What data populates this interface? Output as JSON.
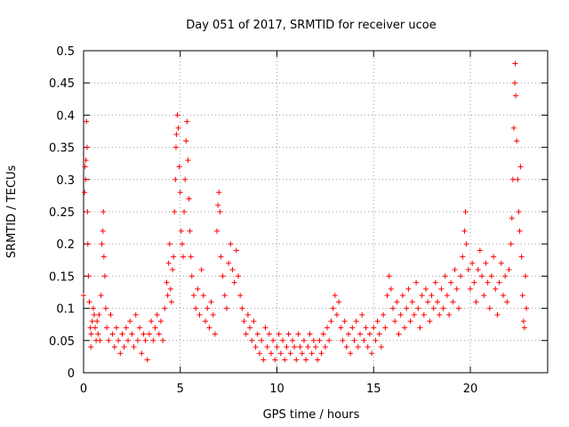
{
  "chart_data": {
    "type": "scatter",
    "title": "Day 051 of 2017, SRMTID for receiver ucoe",
    "xlabel": "GPS time / hours",
    "ylabel": "SRMTID / TECUs",
    "xlim": [
      0,
      24
    ],
    "ylim": [
      0,
      0.5
    ],
    "xticks": [
      0,
      5,
      10,
      15,
      20
    ],
    "xtick_labels": [
      "0",
      "5",
      "10",
      "15",
      "20"
    ],
    "yticks": [
      0,
      0.05,
      0.1,
      0.15,
      0.2,
      0.25,
      0.3,
      0.35,
      0.4,
      0.45,
      0.5
    ],
    "ytick_labels": [
      "0",
      "0.05",
      "0.1",
      "0.15",
      "0.2",
      "0.25",
      "0.3",
      "0.35",
      "0.4",
      "0.45",
      "0.5"
    ],
    "grid": true,
    "marker": "+",
    "marker_color": "#ff0000",
    "series": [
      {
        "name": "SRMTID",
        "points": [
          [
            0.0,
            0.12
          ],
          [
            0.05,
            0.28
          ],
          [
            0.08,
            0.32
          ],
          [
            0.1,
            0.3
          ],
          [
            0.12,
            0.33
          ],
          [
            0.15,
            0.39
          ],
          [
            0.18,
            0.35
          ],
          [
            0.2,
            0.25
          ],
          [
            0.22,
            0.2
          ],
          [
            0.25,
            0.15
          ],
          [
            0.3,
            0.11
          ],
          [
            0.35,
            0.07
          ],
          [
            0.38,
            0.04
          ],
          [
            0.4,
            0.06
          ],
          [
            0.45,
            0.08
          ],
          [
            0.5,
            0.1
          ],
          [
            0.55,
            0.09
          ],
          [
            0.6,
            0.07
          ],
          [
            0.65,
            0.05
          ],
          [
            0.7,
            0.08
          ],
          [
            0.75,
            0.06
          ],
          [
            0.8,
            0.09
          ],
          [
            0.85,
            0.05
          ],
          [
            0.9,
            0.12
          ],
          [
            0.95,
            0.2
          ],
          [
            1.0,
            0.22
          ],
          [
            1.02,
            0.25
          ],
          [
            1.05,
            0.18
          ],
          [
            1.1,
            0.15
          ],
          [
            1.15,
            0.1
          ],
          [
            1.2,
            0.07
          ],
          [
            1.3,
            0.05
          ],
          [
            1.4,
            0.09
          ],
          [
            1.5,
            0.06
          ],
          [
            1.6,
            0.04
          ],
          [
            1.7,
            0.07
          ],
          [
            1.8,
            0.05
          ],
          [
            1.9,
            0.03
          ],
          [
            2.0,
            0.06
          ],
          [
            2.1,
            0.04
          ],
          [
            2.2,
            0.07
          ],
          [
            2.3,
            0.05
          ],
          [
            2.4,
            0.08
          ],
          [
            2.5,
            0.06
          ],
          [
            2.6,
            0.04
          ],
          [
            2.7,
            0.09
          ],
          [
            2.8,
            0.05
          ],
          [
            2.9,
            0.07
          ],
          [
            3.0,
            0.03
          ],
          [
            3.1,
            0.06
          ],
          [
            3.2,
            0.05
          ],
          [
            3.3,
            0.02
          ],
          [
            3.4,
            0.06
          ],
          [
            3.5,
            0.08
          ],
          [
            3.6,
            0.05
          ],
          [
            3.7,
            0.07
          ],
          [
            3.8,
            0.09
          ],
          [
            3.9,
            0.06
          ],
          [
            4.0,
            0.08
          ],
          [
            4.1,
            0.05
          ],
          [
            4.2,
            0.1
          ],
          [
            4.3,
            0.14
          ],
          [
            4.35,
            0.12
          ],
          [
            4.4,
            0.17
          ],
          [
            4.45,
            0.2
          ],
          [
            4.5,
            0.13
          ],
          [
            4.55,
            0.11
          ],
          [
            4.6,
            0.16
          ],
          [
            4.65,
            0.18
          ],
          [
            4.7,
            0.25
          ],
          [
            4.75,
            0.3
          ],
          [
            4.78,
            0.35
          ],
          [
            4.8,
            0.37
          ],
          [
            4.85,
            0.4
          ],
          [
            4.9,
            0.38
          ],
          [
            4.95,
            0.32
          ],
          [
            5.0,
            0.28
          ],
          [
            5.05,
            0.22
          ],
          [
            5.1,
            0.2
          ],
          [
            5.15,
            0.18
          ],
          [
            5.2,
            0.25
          ],
          [
            5.25,
            0.3
          ],
          [
            5.3,
            0.36
          ],
          [
            5.35,
            0.39
          ],
          [
            5.4,
            0.33
          ],
          [
            5.45,
            0.27
          ],
          [
            5.5,
            0.22
          ],
          [
            5.55,
            0.18
          ],
          [
            5.6,
            0.15
          ],
          [
            5.7,
            0.12
          ],
          [
            5.8,
            0.1
          ],
          [
            5.9,
            0.13
          ],
          [
            6.0,
            0.09
          ],
          [
            6.1,
            0.16
          ],
          [
            6.2,
            0.12
          ],
          [
            6.3,
            0.08
          ],
          [
            6.4,
            0.1
          ],
          [
            6.5,
            0.07
          ],
          [
            6.6,
            0.11
          ],
          [
            6.7,
            0.09
          ],
          [
            6.8,
            0.06
          ],
          [
            6.9,
            0.22
          ],
          [
            6.95,
            0.26
          ],
          [
            7.0,
            0.28
          ],
          [
            7.05,
            0.25
          ],
          [
            7.1,
            0.18
          ],
          [
            7.2,
            0.15
          ],
          [
            7.3,
            0.12
          ],
          [
            7.4,
            0.1
          ],
          [
            7.5,
            0.17
          ],
          [
            7.6,
            0.2
          ],
          [
            7.7,
            0.16
          ],
          [
            7.8,
            0.14
          ],
          [
            7.9,
            0.19
          ],
          [
            8.0,
            0.15
          ],
          [
            8.1,
            0.12
          ],
          [
            8.2,
            0.1
          ],
          [
            8.3,
            0.08
          ],
          [
            8.4,
            0.06
          ],
          [
            8.5,
            0.09
          ],
          [
            8.6,
            0.07
          ],
          [
            8.7,
            0.05
          ],
          [
            8.8,
            0.08
          ],
          [
            8.9,
            0.04
          ],
          [
            9.0,
            0.06
          ],
          [
            9.1,
            0.03
          ],
          [
            9.2,
            0.05
          ],
          [
            9.3,
            0.02
          ],
          [
            9.4,
            0.07
          ],
          [
            9.5,
            0.04
          ],
          [
            9.6,
            0.06
          ],
          [
            9.7,
            0.03
          ],
          [
            9.8,
            0.05
          ],
          [
            9.9,
            0.02
          ],
          [
            10.0,
            0.04
          ],
          [
            10.1,
            0.06
          ],
          [
            10.2,
            0.03
          ],
          [
            10.3,
            0.05
          ],
          [
            10.4,
            0.02
          ],
          [
            10.5,
            0.04
          ],
          [
            10.6,
            0.06
          ],
          [
            10.7,
            0.03
          ],
          [
            10.8,
            0.05
          ],
          [
            10.9,
            0.04
          ],
          [
            11.0,
            0.02
          ],
          [
            11.1,
            0.06
          ],
          [
            11.2,
            0.04
          ],
          [
            11.3,
            0.03
          ],
          [
            11.4,
            0.05
          ],
          [
            11.5,
            0.02
          ],
          [
            11.6,
            0.04
          ],
          [
            11.7,
            0.06
          ],
          [
            11.8,
            0.03
          ],
          [
            11.9,
            0.05
          ],
          [
            12.0,
            0.04
          ],
          [
            12.1,
            0.02
          ],
          [
            12.2,
            0.05
          ],
          [
            12.3,
            0.03
          ],
          [
            12.4,
            0.06
          ],
          [
            12.5,
            0.04
          ],
          [
            12.6,
            0.07
          ],
          [
            12.7,
            0.05
          ],
          [
            12.8,
            0.08
          ],
          [
            12.9,
            0.1
          ],
          [
            13.0,
            0.12
          ],
          [
            13.1,
            0.09
          ],
          [
            13.2,
            0.11
          ],
          [
            13.3,
            0.07
          ],
          [
            13.4,
            0.05
          ],
          [
            13.5,
            0.08
          ],
          [
            13.6,
            0.04
          ],
          [
            13.7,
            0.06
          ],
          [
            13.8,
            0.03
          ],
          [
            13.9,
            0.07
          ],
          [
            14.0,
            0.05
          ],
          [
            14.1,
            0.08
          ],
          [
            14.2,
            0.04
          ],
          [
            14.3,
            0.06
          ],
          [
            14.4,
            0.09
          ],
          [
            14.5,
            0.05
          ],
          [
            14.6,
            0.07
          ],
          [
            14.7,
            0.04
          ],
          [
            14.8,
            0.06
          ],
          [
            14.9,
            0.03
          ],
          [
            15.0,
            0.07
          ],
          [
            15.1,
            0.05
          ],
          [
            15.2,
            0.08
          ],
          [
            15.3,
            0.06
          ],
          [
            15.4,
            0.04
          ],
          [
            15.5,
            0.09
          ],
          [
            15.6,
            0.07
          ],
          [
            15.7,
            0.12
          ],
          [
            15.8,
            0.15
          ],
          [
            15.9,
            0.13
          ],
          [
            16.0,
            0.1
          ],
          [
            16.1,
            0.08
          ],
          [
            16.2,
            0.11
          ],
          [
            16.3,
            0.06
          ],
          [
            16.4,
            0.09
          ],
          [
            16.5,
            0.12
          ],
          [
            16.6,
            0.07
          ],
          [
            16.7,
            0.1
          ],
          [
            16.8,
            0.13
          ],
          [
            16.9,
            0.08
          ],
          [
            17.0,
            0.11
          ],
          [
            17.1,
            0.09
          ],
          [
            17.2,
            0.14
          ],
          [
            17.3,
            0.1
          ],
          [
            17.4,
            0.07
          ],
          [
            17.5,
            0.12
          ],
          [
            17.6,
            0.09
          ],
          [
            17.7,
            0.13
          ],
          [
            17.8,
            0.11
          ],
          [
            17.9,
            0.08
          ],
          [
            18.0,
            0.12
          ],
          [
            18.1,
            0.1
          ],
          [
            18.2,
            0.14
          ],
          [
            18.3,
            0.11
          ],
          [
            18.4,
            0.09
          ],
          [
            18.5,
            0.13
          ],
          [
            18.6,
            0.1
          ],
          [
            18.7,
            0.15
          ],
          [
            18.8,
            0.12
          ],
          [
            18.9,
            0.09
          ],
          [
            19.0,
            0.14
          ],
          [
            19.1,
            0.11
          ],
          [
            19.2,
            0.16
          ],
          [
            19.3,
            0.13
          ],
          [
            19.4,
            0.1
          ],
          [
            19.5,
            0.15
          ],
          [
            19.6,
            0.18
          ],
          [
            19.7,
            0.22
          ],
          [
            19.75,
            0.25
          ],
          [
            19.8,
            0.2
          ],
          [
            19.9,
            0.16
          ],
          [
            20.0,
            0.13
          ],
          [
            20.1,
            0.17
          ],
          [
            20.2,
            0.14
          ],
          [
            20.3,
            0.11
          ],
          [
            20.4,
            0.16
          ],
          [
            20.5,
            0.19
          ],
          [
            20.6,
            0.15
          ],
          [
            20.7,
            0.12
          ],
          [
            20.8,
            0.17
          ],
          [
            20.9,
            0.14
          ],
          [
            21.0,
            0.1
          ],
          [
            21.1,
            0.15
          ],
          [
            21.2,
            0.18
          ],
          [
            21.3,
            0.13
          ],
          [
            21.4,
            0.09
          ],
          [
            21.5,
            0.14
          ],
          [
            21.6,
            0.17
          ],
          [
            21.7,
            0.12
          ],
          [
            21.8,
            0.15
          ],
          [
            21.9,
            0.11
          ],
          [
            22.0,
            0.16
          ],
          [
            22.1,
            0.2
          ],
          [
            22.15,
            0.24
          ],
          [
            22.2,
            0.3
          ],
          [
            22.25,
            0.38
          ],
          [
            22.3,
            0.45
          ],
          [
            22.32,
            0.48
          ],
          [
            22.35,
            0.43
          ],
          [
            22.4,
            0.36
          ],
          [
            22.45,
            0.3
          ],
          [
            22.5,
            0.25
          ],
          [
            22.55,
            0.22
          ],
          [
            22.6,
            0.32
          ],
          [
            22.65,
            0.18
          ],
          [
            22.7,
            0.12
          ],
          [
            22.75,
            0.08
          ],
          [
            22.8,
            0.07
          ],
          [
            22.85,
            0.15
          ],
          [
            22.9,
            0.1
          ]
        ]
      }
    ]
  }
}
